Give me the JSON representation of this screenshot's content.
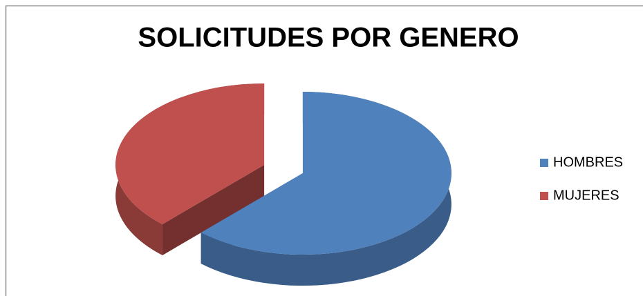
{
  "chart_data": {
    "type": "pie",
    "title": "SOLICITUDES POR GENERO",
    "categories": [
      "HOMBRES",
      "MUJERES"
    ],
    "values": [
      62,
      38
    ],
    "colors": [
      "#4f81bd",
      "#c0504d"
    ],
    "legend": "right"
  }
}
